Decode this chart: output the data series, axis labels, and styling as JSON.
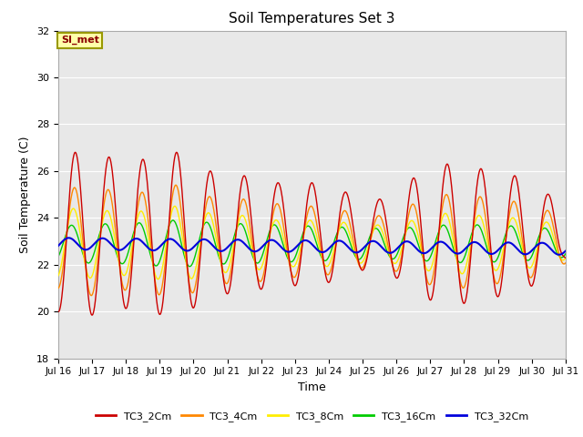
{
  "title": "Soil Temperatures Set 3",
  "xlabel": "Time",
  "ylabel": "Soil Temperature (C)",
  "ylim": [
    18,
    32
  ],
  "yticks": [
    18,
    20,
    22,
    24,
    26,
    28,
    30,
    32
  ],
  "xtick_labels": [
    "Jul 16",
    "Jul 17",
    "Jul 18",
    "Jul 19",
    "Jul 20",
    "Jul 21",
    "Jul 22",
    "Jul 23",
    "Jul 24",
    "Jul 25",
    "Jul 26",
    "Jul 27",
    "Jul 28",
    "Jul 29",
    "Jul 30",
    "Jul 31"
  ],
  "annotation_text": "SI_met",
  "colors": {
    "TC3_2Cm": "#cc0000",
    "TC3_4Cm": "#ff8800",
    "TC3_8Cm": "#ffee00",
    "TC3_16Cm": "#00cc00",
    "TC3_32Cm": "#0000dd"
  },
  "legend_labels": [
    "TC3_2Cm",
    "TC3_4Cm",
    "TC3_8Cm",
    "TC3_16Cm",
    "TC3_32Cm"
  ],
  "plot_bg_color": "#e8e8e8",
  "fig_bg_color": "#ffffff",
  "grid_color": "#ffffff",
  "linewidth": 1.0
}
